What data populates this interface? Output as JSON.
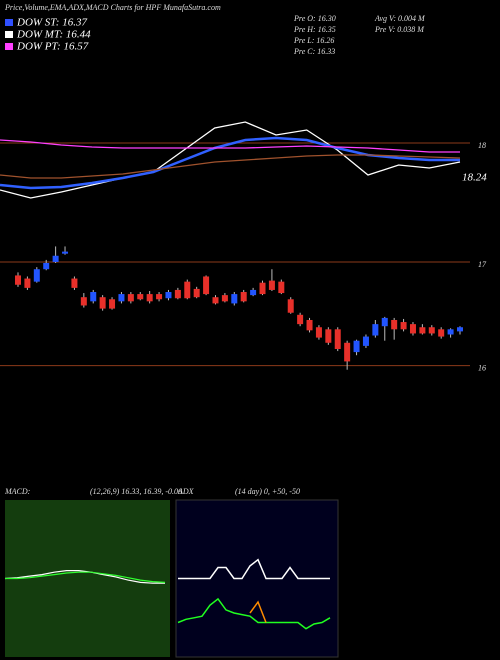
{
  "chart_data": {
    "type": "candlestick",
    "title": "Price,Volume,EMA,ADX,MACD Charts for HPF MunafaSutra.com",
    "legend": [
      {
        "name": "DOW ST: 16.37",
        "color": "#3050ff"
      },
      {
        "name": "DOW MT: 16.44",
        "color": "#ffffff"
      },
      {
        "name": "DOW PT: 16.57",
        "color": "#ff40ff"
      }
    ],
    "info": [
      "Pre  O: 16.30",
      "Pre  H: 16.35",
      "Pre  L: 16.26",
      "Pre  C: 16.33",
      "Avg V: 0.004  M",
      "Pre  V: 0.038  M"
    ],
    "upper_labels": [
      "18",
      "18.24"
    ],
    "open": [
      16.87,
      16.84,
      16.81,
      16.93,
      17.0,
      17.08,
      16.84,
      16.66,
      16.62,
      16.66,
      16.64,
      16.62,
      16.69,
      16.69,
      16.69,
      16.69,
      16.65,
      16.73,
      16.81,
      16.74,
      16.86,
      16.66,
      16.68,
      16.6,
      16.71,
      16.68,
      16.8,
      16.82,
      16.81,
      16.64,
      16.49,
      16.44,
      16.37,
      16.35,
      16.35,
      16.22,
      16.13,
      16.19,
      16.29,
      16.38,
      16.44,
      16.42,
      16.4,
      16.37,
      16.37,
      16.35,
      16.3,
      16.33
    ],
    "high": [
      16.9,
      16.86,
      16.95,
      17.02,
      17.15,
      17.15,
      16.86,
      16.7,
      16.73,
      16.68,
      16.66,
      16.71,
      16.71,
      16.71,
      16.72,
      16.71,
      16.73,
      16.75,
      16.83,
      16.76,
      16.87,
      16.68,
      16.7,
      16.71,
      16.73,
      16.75,
      16.82,
      16.93,
      16.83,
      16.66,
      16.51,
      16.46,
      16.39,
      16.37,
      16.37,
      16.24,
      16.25,
      16.3,
      16.44,
      16.47,
      16.46,
      16.45,
      16.42,
      16.4,
      16.39,
      16.37,
      16.36,
      16.38
    ],
    "low": [
      16.76,
      16.73,
      16.8,
      16.92,
      16.99,
      17.07,
      16.73,
      16.56,
      16.6,
      16.53,
      16.54,
      16.6,
      16.6,
      16.63,
      16.6,
      16.62,
      16.63,
      16.64,
      16.64,
      16.65,
      16.68,
      16.59,
      16.61,
      16.58,
      16.61,
      16.67,
      16.68,
      16.72,
      16.69,
      16.5,
      16.38,
      16.32,
      16.25,
      16.2,
      16.14,
      15.96,
      16.1,
      16.17,
      16.27,
      16.24,
      16.25,
      16.33,
      16.29,
      16.3,
      16.29,
      16.26,
      16.27,
      16.3
    ],
    "close": [
      16.78,
      16.75,
      16.93,
      16.99,
      17.06,
      17.1,
      16.75,
      16.58,
      16.71,
      16.55,
      16.55,
      16.69,
      16.62,
      16.64,
      16.62,
      16.64,
      16.71,
      16.65,
      16.65,
      16.66,
      16.69,
      16.6,
      16.62,
      16.69,
      16.62,
      16.73,
      16.69,
      16.73,
      16.7,
      16.51,
      16.4,
      16.34,
      16.27,
      16.22,
      16.16,
      16.04,
      16.24,
      16.28,
      16.4,
      16.46,
      16.35,
      16.35,
      16.31,
      16.31,
      16.31,
      16.28,
      16.35,
      16.37
    ],
    "up_color": "#2255ff",
    "down_color": "#e8302a",
    "ylim": [
      15.88,
      17.27
    ],
    "yticks": [
      17,
      16
    ],
    "upper_ylim": [
      17.6,
      18.6
    ],
    "upper_series": [
      {
        "color": "#ffffff",
        "values": [
          17.75,
          17.67,
          17.73,
          17.8,
          17.87,
          17.93,
          18.15,
          18.37,
          18.43,
          18.3,
          18.35,
          18.15,
          17.9,
          18.0,
          17.97,
          18.03
        ]
      },
      {
        "color": "#3060ff",
        "values": [
          17.8,
          17.77,
          17.78,
          17.82,
          17.87,
          17.93,
          18.05,
          18.17,
          18.25,
          18.27,
          18.25,
          18.17,
          18.1,
          18.07,
          18.05,
          18.05
        ]
      },
      {
        "color": "#ff40ff",
        "values": [
          18.25,
          18.23,
          18.2,
          18.18,
          18.17,
          18.17,
          18.17,
          18.17,
          18.17,
          18.18,
          18.19,
          18.18,
          18.17,
          18.15,
          18.13,
          18.13
        ]
      },
      {
        "color": "#a0522d",
        "values": [
          17.9,
          17.87,
          17.87,
          17.89,
          17.91,
          17.95,
          17.99,
          18.03,
          18.05,
          18.07,
          18.09,
          18.1,
          18.1,
          18.09,
          18.08,
          18.07
        ]
      }
    ],
    "macd": {
      "label": "MACD:",
      "params": "(12,26,9) 16.33, 16.39, -0.06",
      "ylim": [
        -1,
        1
      ],
      "series": [
        {
          "color": "#ffffff",
          "values": [
            0,
            0.01,
            0.03,
            0.05,
            0.08,
            0.1,
            0.1,
            0.08,
            0.05,
            0.02,
            -0.02,
            -0.05,
            -0.06,
            -0.06
          ]
        },
        {
          "color": "#30ff30",
          "values": [
            0,
            0,
            0.01,
            0.03,
            0.05,
            0.07,
            0.08,
            0.08,
            0.06,
            0.04,
            0.01,
            -0.02,
            -0.04,
            -0.05
          ]
        }
      ]
    },
    "adx": {
      "label": "ADX",
      "params": "(14  day) 0, +50, -50",
      "ylim": [
        0,
        100
      ],
      "series": [
        {
          "color": "#ffffff",
          "values": [
            50,
            50,
            50,
            50,
            50,
            57,
            57,
            50,
            50,
            58,
            62,
            50,
            50,
            50,
            57,
            50,
            50,
            50,
            50,
            50
          ]
        },
        {
          "color": "#20ff20",
          "values": [
            22,
            24,
            25,
            26,
            33,
            37,
            30,
            28,
            27,
            26,
            22,
            22,
            22,
            22,
            22,
            22,
            18,
            21,
            22,
            25
          ]
        },
        {
          "color": "#ff8c00",
          "values": [
            null,
            null,
            null,
            null,
            null,
            null,
            null,
            null,
            null,
            28,
            35,
            22,
            null,
            null,
            null,
            null,
            null,
            null,
            null,
            null
          ]
        }
      ]
    }
  }
}
